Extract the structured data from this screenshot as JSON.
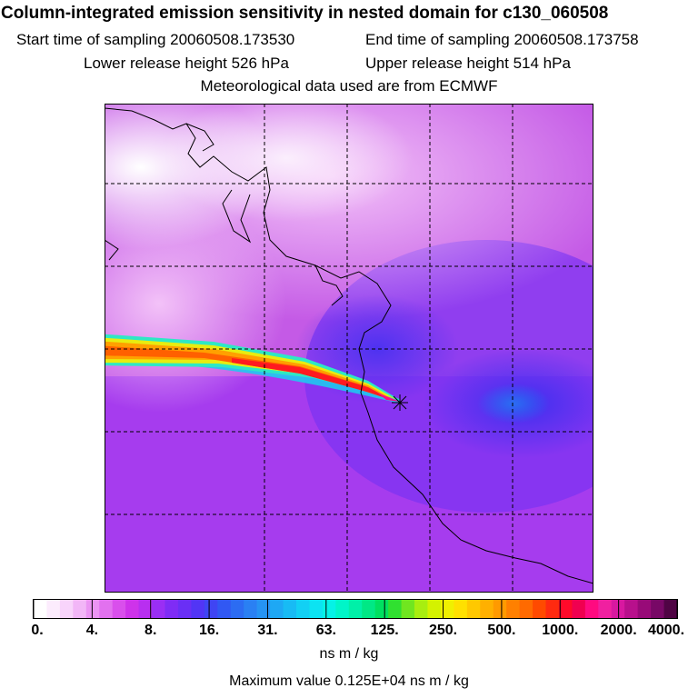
{
  "header": {
    "title": "Column-integrated emission sensitivity in nested domain for c130_060508",
    "start_label": "Start time of sampling",
    "start_value": "20060508.173530",
    "end_label": "End time of sampling",
    "end_value": "20060508.173758",
    "lower_label": "Lower release height",
    "lower_value": "526 hPa",
    "upper_label": "Upper release height",
    "upper_value": "514 hPa",
    "met_text": "Meteorological data used are from ECMWF"
  },
  "colorbar": {
    "tick_labels": [
      "0.",
      "4.",
      "8.",
      "16.",
      "31.",
      "63.",
      "125.",
      "250.",
      "500.",
      "1000.",
      "2000.",
      "4000."
    ],
    "colors": [
      "#ffffff",
      "#fcecfd",
      "#f8d4fb",
      "#f2b6f7",
      "#eb94f3",
      "#e271ef",
      "#d94fec",
      "#ce33ea",
      "#b82ff0",
      "#9a2ef4",
      "#7f2cf5",
      "#6a2ff5",
      "#5235f5",
      "#3f45f3",
      "#3158f3",
      "#2c6cf2",
      "#2a80f3",
      "#2693f3",
      "#1ea8f4",
      "#18bbf4",
      "#12d0f4",
      "#0ce3f2",
      "#05f2e6",
      "#00f5c8",
      "#00f0a8",
      "#00e885",
      "#00e060",
      "#30e030",
      "#70e620",
      "#a8ee10",
      "#d4f200",
      "#f0f000",
      "#ffe000",
      "#ffc800",
      "#ffb000",
      "#ff9a00",
      "#ff8000",
      "#ff6a00",
      "#ff4a00",
      "#ff2a10",
      "#ff0a2a",
      "#f00050",
      "#ff0a80",
      "#f020a0",
      "#d818a0",
      "#b8108c",
      "#980a78",
      "#780866",
      "#500444"
    ],
    "unit": "ns m / kg"
  },
  "footer": {
    "max_label": "Maximum value",
    "max_value": "0.125E+04 ns m / kg"
  }
}
